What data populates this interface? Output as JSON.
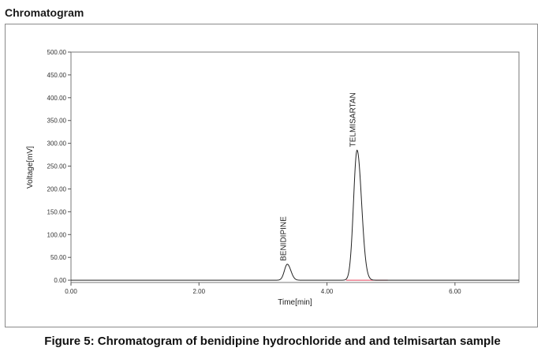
{
  "header": {
    "title": "Chromatogram"
  },
  "caption": "Figure 5: Chromatogram of benidipine hydrochloride and and telmisartan sample",
  "chart_data": {
    "type": "line",
    "xlabel": "Time[min]",
    "ylabel": "Voltage[mV]",
    "xlim": [
      0,
      7.0
    ],
    "ylim": [
      -5,
      500
    ],
    "x_ticks": [
      "0.00",
      "2.00",
      "4.00",
      "6.00"
    ],
    "x_tick_values": [
      0,
      2,
      4,
      6
    ],
    "y_ticks": [
      "0.00",
      "50.00",
      "100.00",
      "150.00",
      "200.00",
      "250.00",
      "300.00",
      "350.00",
      "400.00",
      "450.00",
      "500.00"
    ],
    "y_tick_values": [
      0,
      50,
      100,
      150,
      200,
      250,
      300,
      350,
      400,
      450,
      500
    ],
    "grid": false,
    "colors": {
      "signal": "#222222",
      "baseline": "#e0405a"
    },
    "peaks": [
      {
        "name": "BENIDIPINE",
        "time": 3.38,
        "height": 35
      },
      {
        "name": "TELMISARTAN",
        "time": 4.47,
        "height": 285
      }
    ]
  }
}
